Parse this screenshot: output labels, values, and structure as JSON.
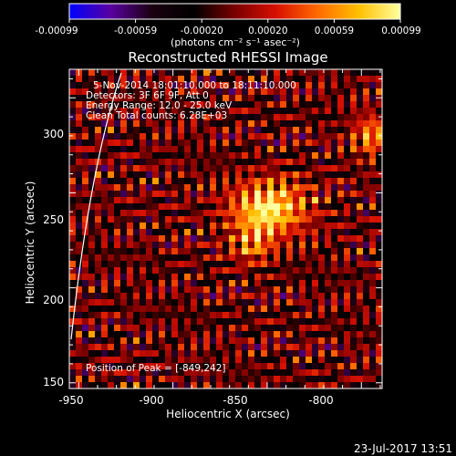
{
  "colorbar": {
    "ticks": [
      "-0.00099",
      "-0.00059",
      "-0.00020",
      "0.00020",
      "0.00059",
      "0.00099"
    ],
    "units": "(photons cm⁻² s⁻¹ asec⁻²)",
    "range": [
      -0.00099,
      0.00099
    ],
    "stops": [
      "#0000ff",
      "#5a00a0",
      "#1a0010",
      "#000000",
      "#7a0000",
      "#d81000",
      "#ff6a00",
      "#ffc000",
      "#ffffa0"
    ]
  },
  "title": "Reconstructed RHESSI Image",
  "annotations": {
    "time_range": "5-Nov-2014 18:01:10.000 to 18:11:10.000",
    "detectors": "Detectors: 3F 6F 9F, Att 0",
    "energy": "Energy Range: 12.0 - 25.0 keV",
    "method": "Clean    Total counts: 6.28E+03",
    "peak": "Position of Peak = [-849,242]"
  },
  "x_axis": {
    "label": "Heliocentric X (arcsec)",
    "ticks": [
      "-950",
      "-900",
      "-850",
      "-800"
    ],
    "tick_values": [
      -950,
      -900,
      -850,
      -800
    ],
    "range": [
      -955,
      -789
    ]
  },
  "y_axis": {
    "label": "Heliocentric Y (arcsec)",
    "ticks": [
      "300",
      "250",
      "200",
      "150"
    ],
    "tick_values": [
      300,
      250,
      200,
      150
    ],
    "range": [
      147,
      315
    ]
  },
  "peak": {
    "x": -849,
    "y": 242
  },
  "footer": {
    "timestamp": "23-Jul-2017 13:51"
  }
}
